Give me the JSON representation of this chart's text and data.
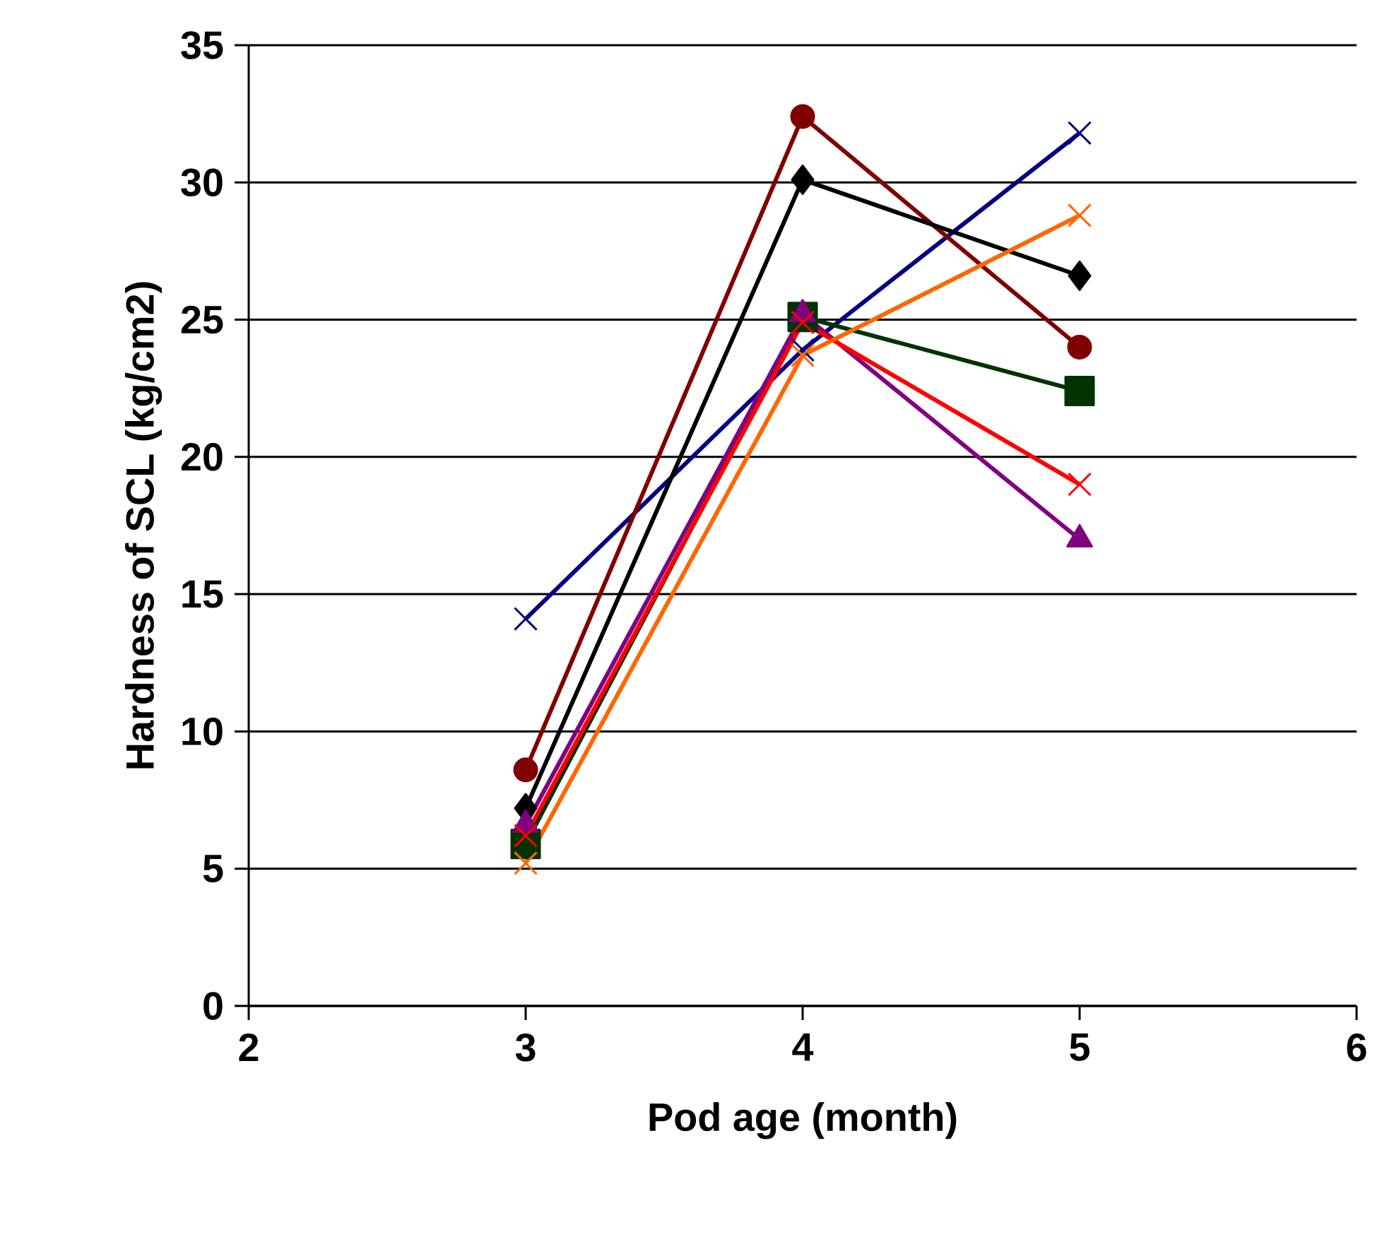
{
  "chart_data": {
    "type": "line",
    "xlabel": "Pod age (month)",
    "ylabel": "Hardness of SCL (kg/cm2)",
    "xlim": [
      2,
      6
    ],
    "xticks": [
      2,
      3,
      4,
      5,
      6
    ],
    "ylim": [
      0,
      35
    ],
    "yticks": [
      0,
      5,
      10,
      15,
      20,
      25,
      30,
      35
    ],
    "grid": "y",
    "line_style": "solid",
    "x": [
      3,
      4,
      5
    ],
    "series": [
      {
        "color": "#000080",
        "marker": "cross",
        "values": [
          14.1,
          23.9,
          31.8
        ]
      },
      {
        "color": "#800000",
        "marker": "circle",
        "values": [
          8.6,
          32.4,
          24.0
        ]
      },
      {
        "color": "#000000",
        "marker": "diamond",
        "values": [
          7.2,
          30.1,
          26.6
        ]
      },
      {
        "color": "#003300",
        "marker": "square",
        "values": [
          5.9,
          25.1,
          22.4
        ]
      },
      {
        "color": "#800080",
        "marker": "triangle",
        "values": [
          6.6,
          25.2,
          17.0
        ]
      },
      {
        "color": "#ff0000",
        "marker": "cross",
        "values": [
          6.2,
          24.9,
          19.0
        ]
      },
      {
        "color": "#ff6600",
        "marker": "cross",
        "values": [
          5.2,
          23.7,
          28.8
        ]
      }
    ]
  }
}
